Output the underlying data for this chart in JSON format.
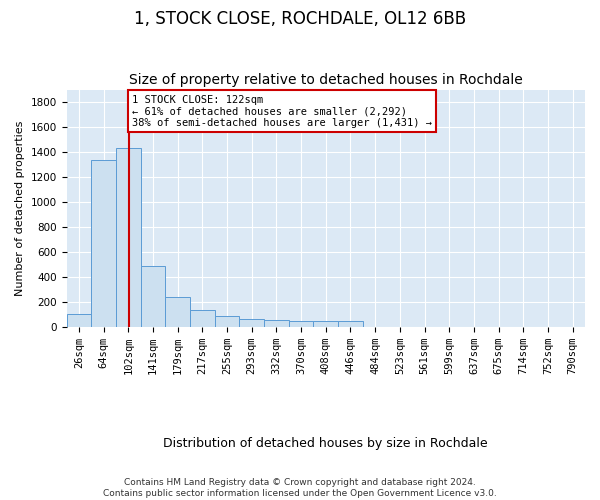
{
  "title": "1, STOCK CLOSE, ROCHDALE, OL12 6BB",
  "subtitle": "Size of property relative to detached houses in Rochdale",
  "xlabel": "Distribution of detached houses by size in Rochdale",
  "ylabel": "Number of detached properties",
  "footer_line1": "Contains HM Land Registry data © Crown copyright and database right 2024.",
  "footer_line2": "Contains public sector information licensed under the Open Government Licence v3.0.",
  "bin_labels": [
    "26sqm",
    "64sqm",
    "102sqm",
    "141sqm",
    "179sqm",
    "217sqm",
    "255sqm",
    "293sqm",
    "332sqm",
    "370sqm",
    "408sqm",
    "446sqm",
    "484sqm",
    "523sqm",
    "561sqm",
    "599sqm",
    "637sqm",
    "675sqm",
    "714sqm",
    "752sqm",
    "790sqm"
  ],
  "bar_values": [
    110,
    1340,
    1430,
    490,
    240,
    140,
    90,
    70,
    55,
    50,
    50,
    50,
    0,
    0,
    0,
    0,
    0,
    0,
    0,
    0,
    0
  ],
  "bar_color": "#cce0f0",
  "bar_edgecolor": "#5b9bd5",
  "background_color": "#dce9f5",
  "grid_color": "#ffffff",
  "property_line_color": "#cc0000",
  "annotation_line1": "1 STOCK CLOSE: 122sqm",
  "annotation_line2": "← 61% of detached houses are smaller (2,292)",
  "annotation_line3": "38% of semi-detached houses are larger (1,431) →",
  "annotation_box_color": "#cc0000",
  "ylim": [
    0,
    1900
  ],
  "yticks": [
    0,
    200,
    400,
    600,
    800,
    1000,
    1200,
    1400,
    1600,
    1800
  ],
  "title_fontsize": 12,
  "subtitle_fontsize": 10,
  "xlabel_fontsize": 9,
  "ylabel_fontsize": 8,
  "tick_fontsize": 7.5,
  "property_sqm": 122,
  "bin_start_sqm": [
    26,
    64,
    102,
    141,
    179,
    217,
    255,
    293,
    332,
    370,
    408,
    446,
    484,
    523,
    561,
    599,
    637,
    675,
    714,
    752,
    790
  ]
}
